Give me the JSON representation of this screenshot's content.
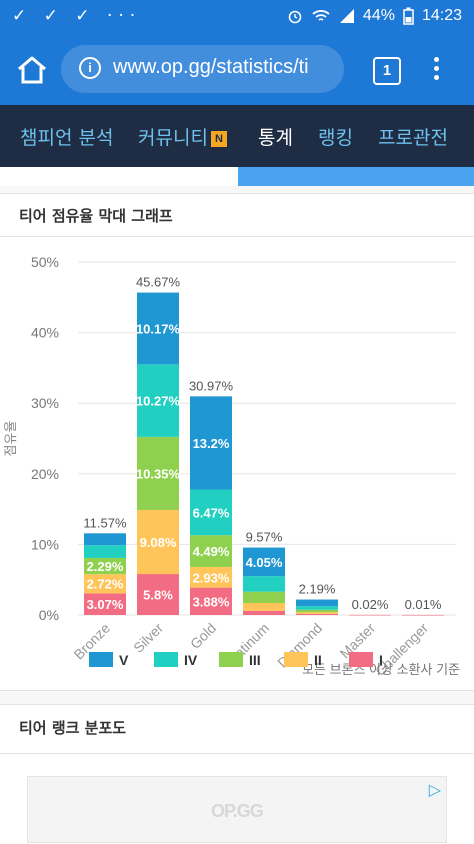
{
  "status": {
    "notif_icons": "✓ ✓ ✓ ···",
    "battery_pct": "44%",
    "time": "14:23"
  },
  "browser": {
    "url": "www.op.gg/statistics/ti",
    "tab_count": "1"
  },
  "nav": {
    "items": [
      {
        "label": "챔피언 분석"
      },
      {
        "label": "커뮤니티",
        "badge": "N"
      },
      {
        "label": "통계"
      },
      {
        "label": "랭킹"
      },
      {
        "label": "프로관전"
      }
    ],
    "active_index": 2
  },
  "section1": {
    "title": "티어 점유율 막대 그래프"
  },
  "section2": {
    "title": "티어 랭크 분포도"
  },
  "ad": {
    "logo": "OP.GG"
  },
  "colors": {
    "statusbar": "#1e78d6",
    "nav_bg": "#1f2d44",
    "nav_text": "#6ec1ee",
    "V": "#1f97d3",
    "IV": "#21d0c0",
    "III": "#8fd14f",
    "II": "#ffc55a",
    "I": "#f26d84"
  },
  "chart_data": {
    "type": "bar",
    "stacked": true,
    "categories": [
      "Bronze",
      "Silver",
      "Gold",
      "Platinum",
      "Diamond",
      "Master",
      "Challenger"
    ],
    "totals": [
      11.57,
      45.67,
      30.97,
      9.57,
      2.19,
      0.02,
      0.01
    ],
    "total_labels": [
      "11.57%",
      "45.67%",
      "30.97%",
      "9.57%",
      "2.19%",
      "0.02%",
      "0.01%"
    ],
    "series": [
      {
        "name": "I",
        "color": "#f26d84",
        "values": [
          3.07,
          5.8,
          3.88,
          0.6,
          0.15,
          0.02,
          0.01
        ]
      },
      {
        "name": "II",
        "color": "#ffc55a",
        "values": [
          2.72,
          9.08,
          2.93,
          1.1,
          0.25,
          0,
          0
        ]
      },
      {
        "name": "III",
        "color": "#8fd14f",
        "values": [
          2.29,
          10.35,
          4.49,
          1.6,
          0.35,
          0,
          0
        ]
      },
      {
        "name": "IV",
        "color": "#21d0c0",
        "values": [
          1.8,
          10.27,
          6.47,
          2.2,
          0.5,
          0,
          0
        ]
      },
      {
        "name": "V",
        "color": "#1f97d3",
        "values": [
          1.69,
          10.17,
          13.2,
          4.05,
          0.94,
          0,
          0
        ]
      }
    ],
    "segment_labels": [
      [
        "3.07%",
        "5.8%",
        "3.88%",
        "",
        "",
        "",
        ""
      ],
      [
        "2.72%",
        "9.08%",
        "2.93%",
        "",
        "",
        "",
        ""
      ],
      [
        "2.29%",
        "10.35%",
        "4.49%",
        "",
        "",
        "",
        ""
      ],
      [
        "",
        "10.27%",
        "6.47%",
        "",
        "",
        "",
        ""
      ],
      [
        "",
        "10.17%",
        "13.2%",
        "4.05%",
        "",
        "",
        ""
      ]
    ],
    "ylabel": "점유율",
    "ylim": [
      0,
      50
    ],
    "yticks": [
      "0%",
      "10%",
      "20%",
      "30%",
      "40%",
      "50%"
    ],
    "ytick_values": [
      0,
      10,
      20,
      30,
      40,
      50
    ],
    "legend_order": [
      "V",
      "IV",
      "III",
      "II",
      "I"
    ],
    "footnote": "모든 브론즈 이상 소환사 기준",
    "grid": true,
    "legend_position": "bottom"
  }
}
